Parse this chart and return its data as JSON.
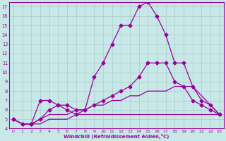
{
  "background_color": "#c8e8e8",
  "line_color": "#990099",
  "grid_color": "#aacccc",
  "xlabel": "Windchill (Refroidissement éolien,°C)",
  "xlim": [
    -0.5,
    23.5
  ],
  "ylim": [
    4,
    17.5
  ],
  "xticks": [
    0,
    1,
    2,
    3,
    4,
    5,
    6,
    7,
    8,
    9,
    10,
    11,
    12,
    13,
    14,
    15,
    16,
    17,
    18,
    19,
    20,
    21,
    22,
    23
  ],
  "yticks": [
    4,
    5,
    6,
    7,
    8,
    9,
    10,
    11,
    12,
    13,
    14,
    15,
    16,
    17
  ],
  "line1": {
    "x": [
      0,
      1,
      2,
      3,
      4,
      5,
      6,
      7,
      8,
      9,
      10,
      11,
      12,
      13,
      14,
      15,
      16,
      17,
      18,
      19,
      20,
      21,
      22,
      23
    ],
    "y": [
      5,
      4.5,
      4.5,
      4.5,
      5,
      5,
      5,
      5.5,
      5.5,
      5.5,
      5.5,
      5.5,
      5.5,
      5.5,
      5.5,
      5.5,
      5.5,
      5.5,
      5.5,
      5.5,
      5.5,
      5.5,
      5.5,
      5.5
    ]
  },
  "line2": {
    "x": [
      0,
      1,
      2,
      3,
      4,
      5,
      6,
      7,
      8,
      9,
      10,
      11,
      12,
      13,
      14,
      15,
      16,
      17,
      18,
      19,
      20,
      21,
      22,
      23
    ],
    "y": [
      5,
      4.5,
      4.5,
      5,
      5.5,
      5.5,
      5.5,
      6,
      6,
      6.5,
      6.5,
      7,
      7,
      7.5,
      7.5,
      8,
      8,
      8,
      8.5,
      8.5,
      8.5,
      7.5,
      6.5,
      5.5
    ]
  },
  "line3": {
    "x": [
      0,
      1,
      2,
      3,
      4,
      5,
      6,
      7,
      8,
      9,
      10,
      11,
      12,
      13,
      14,
      15,
      16,
      17,
      18,
      19,
      20,
      21,
      22,
      23
    ],
    "y": [
      5,
      4.5,
      4.5,
      7,
      7,
      6.5,
      6,
      5.5,
      6,
      9.5,
      11,
      13,
      15,
      15,
      17,
      17.5,
      16,
      14,
      11,
      11,
      8.5,
      7,
      6.5,
      5.5
    ]
  },
  "line4": {
    "x": [
      0,
      1,
      2,
      3,
      4,
      5,
      6,
      7,
      8,
      9,
      10,
      11,
      12,
      13,
      14,
      15,
      16,
      17,
      18,
      19,
      20,
      21,
      22,
      23
    ],
    "y": [
      5,
      4.5,
      4.5,
      5,
      6,
      6.5,
      6.5,
      6,
      6,
      6.5,
      7,
      7.5,
      8,
      8.5,
      9.5,
      11,
      11,
      11,
      9,
      8.5,
      7,
      6.5,
      6,
      5.5
    ]
  }
}
